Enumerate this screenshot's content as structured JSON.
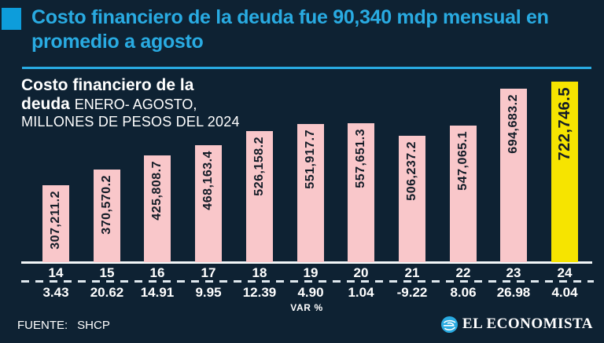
{
  "header": {
    "line1": "Costo financiero de la deuda fue 90,340 mdp mensual en",
    "line2": "promedio a agosto",
    "accent_color": "#29ABE2",
    "bullet_color": "#0D9DDB"
  },
  "chart": {
    "title_line1": "Costo financiero de la",
    "title_line2_bold": "deuda",
    "title_line2_rest": "ENERO- AGOSTO,",
    "title_line3": "MILLONES DE PESOS DEL 2024"
  },
  "chart_data": {
    "type": "bar",
    "categories": [
      "14",
      "15",
      "16",
      "17",
      "18",
      "19",
      "20",
      "21",
      "22",
      "23",
      "24"
    ],
    "values": [
      307211.2,
      370570.2,
      425808.7,
      468163.4,
      526158.2,
      551917.7,
      557651.3,
      506237.2,
      547065.1,
      694683.2,
      722746.5
    ],
    "value_labels": [
      "307,211.2",
      "370,570.2",
      "425,808.7",
      "468,163.4",
      "526,158.2",
      "551,917.7",
      "557,651.3",
      "506,237.2",
      "547,065.1",
      "694,683.2",
      "722,746.5"
    ],
    "var_pct": [
      "3.43",
      "20.62",
      "14.91",
      "9.95",
      "12.39",
      "4.90",
      "1.04",
      "-9.22",
      "8.06",
      "26.98",
      "4.04"
    ],
    "xlabel": "VAR %",
    "highlight_index": 10,
    "bar_color": "#F9C7CA",
    "highlight_color": "#F6E400",
    "value_text_color": "#131C27",
    "ylim": [
      0,
      722746.5
    ],
    "legend": "none",
    "grid": "off"
  },
  "footer": {
    "source_label": "FUENTE:",
    "source_value": "SHCP",
    "brand": "EL ECONOMISTA",
    "brand_color": "#29ABE2"
  }
}
